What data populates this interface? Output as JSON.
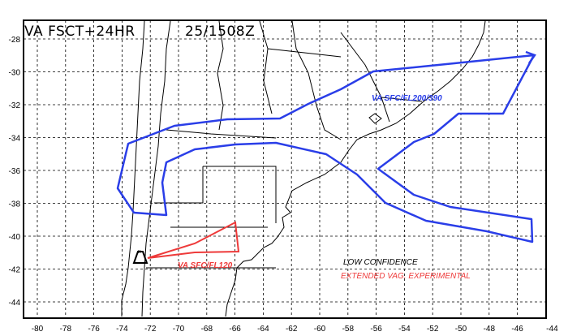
{
  "map": {
    "title": "VA FSCT+24HR",
    "valid_time": "25/1508Z",
    "lon_ticks": [
      "-80",
      "-78",
      "-76",
      "-74",
      "-72",
      "-70",
      "-68",
      "-66",
      "-64",
      "-62",
      "-60",
      "-58",
      "-56",
      "-54",
      "-52",
      "-50",
      "-48",
      "-46",
      "-44"
    ],
    "lat_ticks": [
      "-28",
      "-30",
      "-32",
      "-34",
      "-36",
      "-38",
      "-40",
      "-42",
      "-44"
    ],
    "grid": true,
    "ash_areas": [
      {
        "label": "VA SFC/FL200/390",
        "color": "#2a3ee8"
      },
      {
        "label": "VA SFC/FL120",
        "color": "#ee3a3a"
      }
    ],
    "volcano_icon": "volcano-triangle-icon",
    "notes": {
      "confidence": "LOW CONFIDENCE",
      "experimental": "EXTENDED VAG. EXPERIMENTAL",
      "confidence_color": "#000000",
      "experimental_color": "#ee3a3a"
    }
  }
}
